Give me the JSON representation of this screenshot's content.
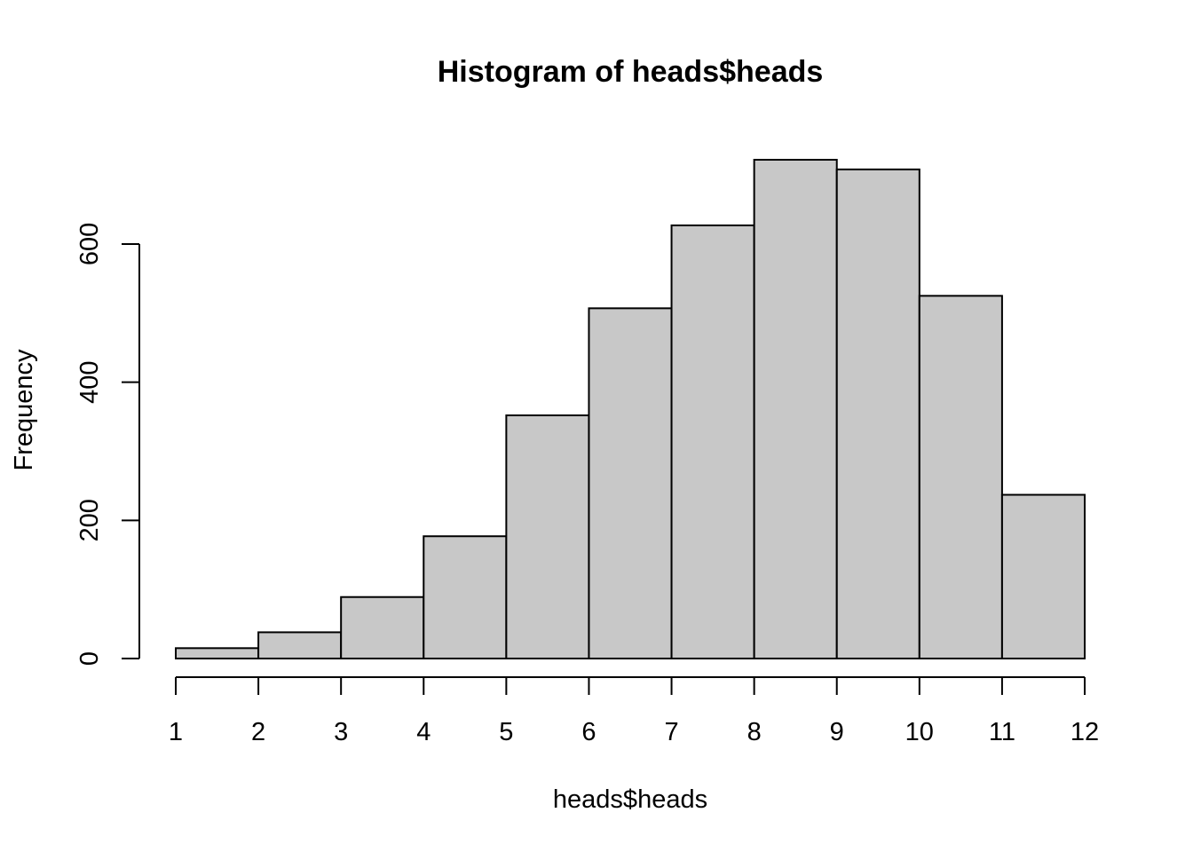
{
  "chart_data": {
    "type": "bar",
    "title": "Histogram of heads$heads",
    "xlabel": "heads$heads",
    "ylabel": "Frequency",
    "bin_edges": [
      1,
      2,
      3,
      4,
      5,
      6,
      7,
      8,
      9,
      10,
      11,
      12
    ],
    "values": [
      15,
      38,
      89,
      177,
      352,
      507,
      627,
      722,
      708,
      525,
      237
    ],
    "xlim": [
      1,
      12
    ],
    "ylim": [
      0,
      722
    ],
    "x_ticks": [
      1,
      2,
      3,
      4,
      5,
      6,
      7,
      8,
      9,
      10,
      11,
      12
    ],
    "y_ticks": [
      0,
      200,
      400,
      600
    ],
    "bar_fill": "#c8c8c8",
    "bar_stroke": "#000000",
    "grid": false,
    "legend": "none"
  }
}
